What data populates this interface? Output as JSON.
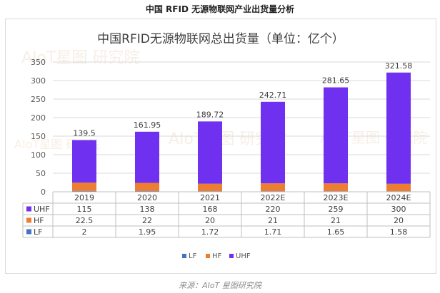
{
  "page_title": "中国 RFID 无源物联网产业出货量分析",
  "source_text": "来源：AIoT 星图研究院",
  "watermark": "AIoT星图 研究院",
  "colors": {
    "LF": "#4472c4",
    "HF": "#ed7d31",
    "UHF": "#7030f0"
  },
  "chart_data": {
    "type": "bar",
    "stacked": true,
    "title": "中国RFID无源物联网总出货量（单位：亿个）",
    "categories": [
      "2019",
      "2020",
      "2021",
      "2022E",
      "2023E",
      "2024E"
    ],
    "series": [
      {
        "name": "UHF",
        "values": [
          115,
          138,
          168,
          220,
          259,
          300
        ]
      },
      {
        "name": "HF",
        "values": [
          22.5,
          22,
          20,
          21,
          21,
          20
        ]
      },
      {
        "name": "LF",
        "values": [
          2,
          1.95,
          1.72,
          1.71,
          1.65,
          1.58
        ]
      }
    ],
    "totals": [
      139.5,
      161.95,
      189.72,
      242.71,
      281.65,
      321.58
    ],
    "ylim": [
      0,
      350
    ],
    "yticks": [
      0,
      50,
      100,
      150,
      200,
      250,
      300,
      350
    ],
    "grid": true,
    "legend_position": "bottom",
    "legend_order": [
      "LF",
      "HF",
      "UHF"
    ],
    "data_table": true
  }
}
